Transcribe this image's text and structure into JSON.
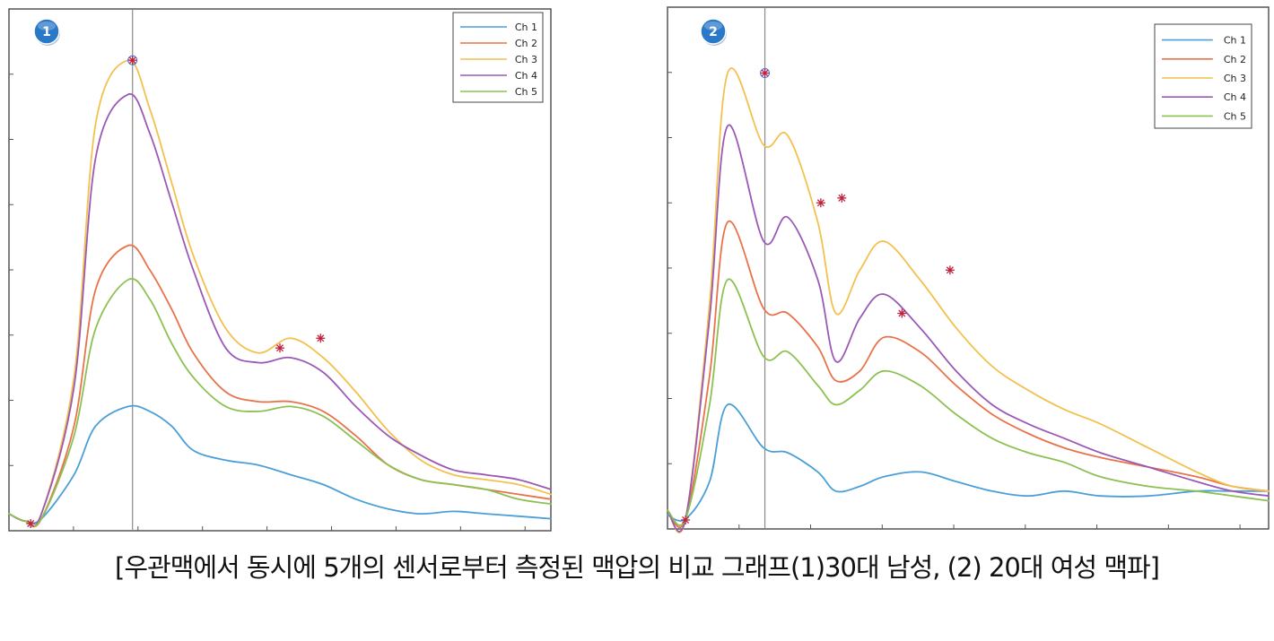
{
  "chart_data": [
    {
      "type": "line",
      "badge": "1",
      "grid": false,
      "x": [
        0,
        0.03,
        0.06,
        0.12,
        0.16,
        0.22,
        0.26,
        0.3,
        0.34,
        0.4,
        0.46,
        0.52,
        0.58,
        0.64,
        0.7,
        0.76,
        0.82,
        0.88,
        0.94,
        1.0
      ],
      "ylim": [
        0,
        1
      ],
      "peak_marker_x": 0.228,
      "series": [
        {
          "name": "Ch 1",
          "color": "#4a9fd8",
          "values": [
            0.02,
            0.005,
            0.01,
            0.1,
            0.2,
            0.24,
            0.23,
            0.2,
            0.15,
            0.13,
            0.12,
            0.1,
            0.08,
            0.05,
            0.03,
            0.02,
            0.025,
            0.02,
            0.015,
            0.01
          ]
        },
        {
          "name": "Ch 2",
          "color": "#e8734a",
          "values": [
            0.02,
            0.005,
            0.01,
            0.2,
            0.48,
            0.57,
            0.52,
            0.44,
            0.35,
            0.27,
            0.25,
            0.25,
            0.23,
            0.18,
            0.12,
            0.09,
            0.08,
            0.07,
            0.06,
            0.05
          ]
        },
        {
          "name": "Ch 3",
          "color": "#f2c14e",
          "values": [
            0.02,
            0.005,
            0.02,
            0.3,
            0.82,
            0.95,
            0.85,
            0.7,
            0.55,
            0.4,
            0.35,
            0.38,
            0.34,
            0.27,
            0.19,
            0.13,
            0.1,
            0.09,
            0.08,
            0.06
          ]
        },
        {
          "name": "Ch 4",
          "color": "#9b59b6",
          "values": [
            0.02,
            0.005,
            0.02,
            0.28,
            0.75,
            0.88,
            0.8,
            0.66,
            0.52,
            0.36,
            0.33,
            0.34,
            0.31,
            0.24,
            0.18,
            0.14,
            0.11,
            0.1,
            0.09,
            0.07
          ]
        },
        {
          "name": "Ch 5",
          "color": "#8cc152",
          "values": [
            0.02,
            0.005,
            0.01,
            0.18,
            0.4,
            0.5,
            0.46,
            0.37,
            0.3,
            0.24,
            0.23,
            0.24,
            0.22,
            0.17,
            0.12,
            0.09,
            0.08,
            0.07,
            0.05,
            0.04
          ]
        }
      ],
      "peak_markers": [
        {
          "x": 0.228,
          "y": 0.95
        },
        {
          "x": 0.5,
          "y": 0.36
        },
        {
          "x": 0.575,
          "y": 0.38
        },
        {
          "x": 0.04,
          "y": 0.0
        }
      ]
    },
    {
      "type": "line",
      "badge": "2",
      "grid": false,
      "x": [
        0,
        0.03,
        0.07,
        0.1,
        0.16,
        0.2,
        0.25,
        0.28,
        0.32,
        0.36,
        0.42,
        0.48,
        0.54,
        0.6,
        0.66,
        0.72,
        0.8,
        0.88,
        0.94,
        1.0
      ],
      "ylim": [
        0,
        1
      ],
      "peak_marker_x": 0.162,
      "series": [
        {
          "name": "Ch 1",
          "color": "#4a9fd8",
          "values": [
            0.01,
            0.002,
            0.08,
            0.24,
            0.15,
            0.14,
            0.1,
            0.06,
            0.07,
            0.09,
            0.1,
            0.08,
            0.06,
            0.05,
            0.06,
            0.05,
            0.05,
            0.06,
            0.06,
            0.06
          ]
        },
        {
          "name": "Ch 2",
          "color": "#e8734a",
          "values": [
            0.02,
            0.002,
            0.3,
            0.62,
            0.44,
            0.43,
            0.36,
            0.29,
            0.31,
            0.38,
            0.35,
            0.28,
            0.22,
            0.18,
            0.15,
            0.13,
            0.11,
            0.09,
            0.07,
            0.06
          ]
        },
        {
          "name": "Ch 3",
          "color": "#f2c14e",
          "values": [
            0.02,
            0.002,
            0.45,
            0.93,
            0.78,
            0.8,
            0.62,
            0.43,
            0.52,
            0.58,
            0.5,
            0.4,
            0.32,
            0.27,
            0.23,
            0.2,
            0.15,
            0.1,
            0.07,
            0.06
          ]
        },
        {
          "name": "Ch 4",
          "color": "#9b59b6",
          "values": [
            0.02,
            0.002,
            0.42,
            0.82,
            0.58,
            0.63,
            0.5,
            0.33,
            0.42,
            0.47,
            0.4,
            0.31,
            0.24,
            0.2,
            0.17,
            0.14,
            0.11,
            0.08,
            0.06,
            0.05
          ]
        },
        {
          "name": "Ch 5",
          "color": "#8cc152",
          "values": [
            0.02,
            0.002,
            0.24,
            0.5,
            0.34,
            0.35,
            0.28,
            0.24,
            0.27,
            0.31,
            0.28,
            0.22,
            0.17,
            0.14,
            0.12,
            0.09,
            0.07,
            0.06,
            0.05,
            0.04
          ]
        }
      ],
      "peak_markers": [
        {
          "x": 0.162,
          "y": 0.93
        },
        {
          "x": 0.255,
          "y": 0.66
        },
        {
          "x": 0.29,
          "y": 0.67
        },
        {
          "x": 0.39,
          "y": 0.43
        },
        {
          "x": 0.47,
          "y": 0.52
        },
        {
          "x": 0.03,
          "y": 0.0
        }
      ]
    }
  ],
  "caption": "[우관맥에서 동시에 5개의 센서로부터 측정된 맥압의 비교 그래프(1)30대 남성, (2) 20대 여성 맥파]"
}
